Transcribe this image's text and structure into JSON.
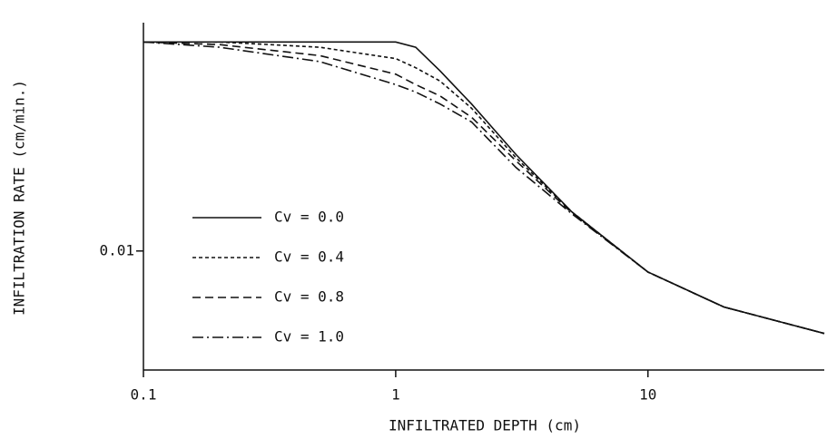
{
  "chart_data": {
    "type": "line",
    "xlabel": "INFILTRATED DEPTH (cm)",
    "ylabel": "INFILTRATION RATE (cm/min.)",
    "xscale": "log",
    "yscale": "log",
    "xlim": [
      0.1,
      50
    ],
    "ylim": [
      0.004,
      0.058
    ],
    "xticks": [
      0.1,
      1,
      10
    ],
    "yticks": [
      0.01
    ],
    "legend": "lower left",
    "x": [
      0.1,
      0.2,
      0.5,
      1,
      1.2,
      1.5,
      2,
      3,
      5,
      10,
      20,
      50
    ],
    "series": [
      {
        "name": "Cv = 0.0",
        "color": "#111111",
        "values": [
          0.05,
          0.05,
          0.05,
          0.05,
          0.048,
          0.04,
          0.031,
          0.021,
          0.0135,
          0.0085,
          0.0065,
          0.0053
        ]
      },
      {
        "name": "Cv = 0.4",
        "color": "#111111",
        "values": [
          0.05,
          0.05,
          0.048,
          0.044,
          0.041,
          0.037,
          0.03,
          0.0205,
          0.0135,
          0.0085,
          0.0065,
          0.0053
        ]
      },
      {
        "name": "Cv = 0.8",
        "color": "#111111",
        "values": [
          0.05,
          0.049,
          0.045,
          0.039,
          0.036,
          0.033,
          0.028,
          0.02,
          0.0134,
          0.0085,
          0.0065,
          0.0053
        ]
      },
      {
        "name": "Cv = 1.0",
        "color": "#111111",
        "values": [
          0.05,
          0.048,
          0.043,
          0.036,
          0.034,
          0.031,
          0.027,
          0.019,
          0.0133,
          0.0085,
          0.0065,
          0.0053
        ]
      }
    ]
  }
}
